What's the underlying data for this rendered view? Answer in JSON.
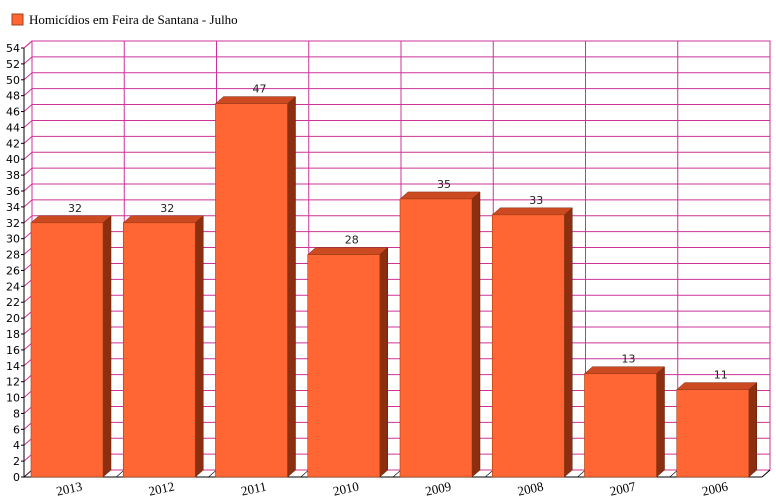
{
  "chart_data": {
    "type": "bar",
    "title": "",
    "xlabel": "",
    "ylabel": "",
    "legend": {
      "placement": "top-left",
      "entries": [
        {
          "label": "Homicídios em Feira de Santana - Julho",
          "color": "#ff6633"
        }
      ]
    },
    "categories": [
      "2013",
      "2012",
      "2011",
      "2010",
      "2009",
      "2008",
      "2007",
      "2006"
    ],
    "series": [
      {
        "name": "Homicídios em Feira de Santana - Julho",
        "values": [
          32,
          32,
          47,
          28,
          35,
          33,
          13,
          11
        ]
      }
    ],
    "ylim": [
      0,
      54
    ],
    "ytick_step": 2,
    "grid": true,
    "bar_style": "3d",
    "colors": {
      "bar_front": "#ff6633",
      "bar_top": "#cc4a22",
      "bar_side": "#8c2e10",
      "grid": "#cc3399",
      "axis": "#000000"
    }
  }
}
